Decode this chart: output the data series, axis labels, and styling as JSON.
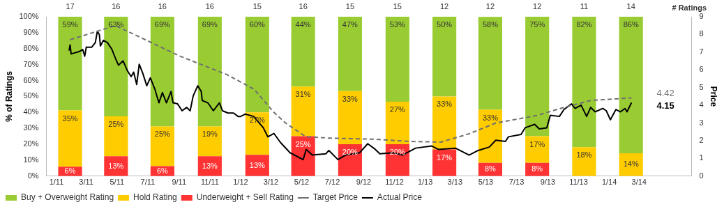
{
  "chart_data": {
    "type": "bar",
    "stacked": true,
    "ylabel": "% of Ratings",
    "y2label": "Price",
    "x": [
      "2011-01-28",
      "2011-04-29",
      "2011-07-30",
      "2011-11-01",
      "2012-02-03",
      "2012-05-04",
      "2012-08-05",
      "2012-11-07",
      "2013-02-08",
      "2013-05-10",
      "2013-08-11",
      "2013-11-12",
      "2014-02-13"
    ],
    "xlim": [
      "2010-12-12",
      "2014-06-13"
    ],
    "xticks": [
      {
        "value": "2011-01",
        "label": "1/11"
      },
      {
        "value": "2011-03",
        "label": "3/11"
      },
      {
        "value": "2011-05",
        "label": "5/11"
      },
      {
        "value": "2011-07",
        "label": "7/11"
      },
      {
        "value": "2011-09",
        "label": "9/11"
      },
      {
        "value": "2011-11",
        "label": "11/11"
      },
      {
        "value": "2012-01",
        "label": "1/12"
      },
      {
        "value": "2012-03",
        "label": "3/12"
      },
      {
        "value": "2012-05",
        "label": "5/12"
      },
      {
        "value": "2012-07",
        "label": "7/12"
      },
      {
        "value": "2012-09",
        "label": "9/12"
      },
      {
        "value": "2012-11",
        "label": "11/12"
      },
      {
        "value": "2013-01",
        "label": "1/13"
      },
      {
        "value": "2013-03",
        "label": "3/13"
      },
      {
        "value": "2013-05",
        "label": "5/13"
      },
      {
        "value": "2013-07",
        "label": "7/13"
      },
      {
        "value": "2013-09",
        "label": "9/13"
      },
      {
        "value": "2013-11",
        "label": "11/13"
      },
      {
        "value": "2014-01",
        "label": "1/14"
      },
      {
        "value": "2014-03",
        "label": "3/14"
      }
    ],
    "ylim": [
      0,
      100
    ],
    "yticks": [
      {
        "value": 0,
        "label": "0%"
      },
      {
        "value": 10,
        "label": "10%"
      },
      {
        "value": 20,
        "label": "20%"
      },
      {
        "value": 30,
        "label": "30%"
      },
      {
        "value": 40,
        "label": "40%"
      },
      {
        "value": 50,
        "label": "50%"
      },
      {
        "value": 60,
        "label": "60%"
      },
      {
        "value": 70,
        "label": "70%"
      },
      {
        "value": 80,
        "label": "80%"
      },
      {
        "value": 90,
        "label": "90%"
      },
      {
        "value": 100,
        "label": "100%"
      }
    ],
    "y2lim": [
      0,
      9
    ],
    "y2ticks": [
      0,
      1,
      2,
      3,
      4,
      5,
      6,
      7,
      8,
      9
    ],
    "grid": false,
    "legend": "bottom",
    "marker": "none",
    "annotations": [
      "# Ratings",
      "4.42",
      "4.15",
      {
        "text": "17",
        "x": "2011-01-28",
        "y": 100
      },
      {
        "text": "16",
        "x": "2011-04-29",
        "y": 100
      },
      {
        "text": "16",
        "x": "2011-07-30",
        "y": 100
      },
      {
        "text": "16",
        "x": "2011-11-01",
        "y": 100
      },
      {
        "text": "15",
        "x": "2012-02-03",
        "y": 100
      },
      {
        "text": "16",
        "x": "2012-05-04",
        "y": 100
      },
      {
        "text": "15",
        "x": "2012-08-05",
        "y": 100
      },
      {
        "text": "15",
        "x": "2012-11-07",
        "y": 100
      },
      {
        "text": "12",
        "x": "2013-02-08",
        "y": 100
      },
      {
        "text": "12",
        "x": "2013-05-10",
        "y": 100
      },
      {
        "text": "12",
        "x": "2013-08-11",
        "y": 100
      },
      {
        "text": "11",
        "x": "2013-11-12",
        "y": 100
      },
      {
        "text": "14",
        "x": "2014-02-13",
        "y": 100
      }
    ],
    "series": [
      {
        "name": "Underweight + Sell Rating",
        "color": "#ff3333",
        "values": [
          5.9,
          12.5,
          6.2,
          12.5,
          13.3,
          25,
          20,
          20,
          16.7,
          8.3,
          8.3,
          0,
          0
        ],
        "value_labels": [
          "6%",
          "13%",
          "6%",
          "13%",
          "13%",
          "25%",
          "20%",
          "20%",
          "17%",
          "8%",
          "8%",
          null,
          null
        ]
      },
      {
        "name": "Hold Rating",
        "color": "#ffcc00",
        "values": [
          35.3,
          25,
          25,
          18.7,
          26.7,
          31.2,
          33.3,
          26.7,
          33.3,
          33.3,
          16.7,
          18.2,
          14.3
        ],
        "value_labels": [
          "35%",
          "25%",
          "25%",
          "19%",
          "27%",
          "31%",
          "33%",
          "27%",
          "33%",
          "33%",
          "17%",
          "18%",
          "14%"
        ]
      },
      {
        "name": "Buy + Overweight Rating",
        "color": "#99cc33",
        "values": [
          58.8,
          62.5,
          68.8,
          68.8,
          60,
          43.8,
          46.7,
          53.3,
          50,
          58.3,
          75,
          81.8,
          85.7
        ],
        "value_labels": [
          "59%",
          "63%",
          "69%",
          "69%",
          "60%",
          "44%",
          "47%",
          "53%",
          "50%",
          "58%",
          "75%",
          "82%",
          "86%"
        ]
      },
      {
        "name": "Target Price",
        "type": "line",
        "axis": "y2",
        "color": "#707070",
        "line_style": "dashed",
        "x": [
          "2011-01-28",
          "2011-04-28",
          "2011-09-03",
          "2011-12-05",
          "2012-01-28",
          "2012-03-07",
          "2012-03-30",
          "2012-05-09",
          "2012-06-22",
          "2012-09-24",
          "2012-12-01",
          "2013-02-01",
          "2013-03-28",
          "2013-05-21",
          "2013-08-10",
          "2013-10-03",
          "2013-11-25",
          "2014-02-14"
        ],
        "values": [
          7.7,
          8.5,
          6.77,
          5.73,
          4.9,
          3.6,
          3.0,
          2.23,
          2.15,
          2.08,
          1.96,
          1.92,
          2.38,
          3.0,
          3.42,
          3.88,
          4.27,
          4.42
        ]
      },
      {
        "name": "Actual Price",
        "type": "line",
        "axis": "y2",
        "color": "#000000",
        "line_style": "solid",
        "x": [
          "2011-01-26",
          "2011-01-28",
          "2011-01-30",
          "2011-02-06",
          "2011-02-15",
          "2011-02-22",
          "2011-02-26",
          "2011-03-01",
          "2011-03-12",
          "2011-03-19",
          "2011-03-23",
          "2011-03-27",
          "2011-03-29",
          "2011-04-04",
          "2011-04-12",
          "2011-04-21",
          "2011-04-28",
          "2011-05-04",
          "2011-05-13",
          "2011-05-22",
          "2011-05-29",
          "2011-06-03",
          "2011-06-09",
          "2011-06-14",
          "2011-06-21",
          "2011-06-29",
          "2011-07-06",
          "2011-07-15",
          "2011-07-23",
          "2011-07-30",
          "2011-08-07",
          "2011-08-16",
          "2011-08-20",
          "2011-08-29",
          "2011-09-07",
          "2011-09-16",
          "2011-09-23",
          "2011-09-29",
          "2011-10-08",
          "2011-10-15",
          "2011-10-17",
          "2011-10-28",
          "2011-11-08",
          "2011-11-20",
          "2011-11-26",
          "2011-12-07",
          "2011-12-18",
          "2011-12-27",
          "2012-01-01",
          "2012-01-10",
          "2012-01-27",
          "2012-02-15",
          "2012-02-24",
          "2012-03-07",
          "2012-03-20",
          "2012-04-08",
          "2012-05-04",
          "2012-05-10",
          "2012-05-22",
          "2012-06-18",
          "2012-06-24",
          "2012-07-12",
          "2012-07-27",
          "2012-08-24",
          "2012-09-09",
          "2012-09-24",
          "2012-10-03",
          "2012-10-29",
          "2012-11-17",
          "2012-12-13",
          "2013-01-14",
          "2013-01-27",
          "2013-03-02",
          "2013-03-29",
          "2013-04-16",
          "2013-05-08",
          "2013-05-21",
          "2013-06-09",
          "2013-06-15",
          "2013-07-10",
          "2013-07-18",
          "2013-08-06",
          "2013-08-15",
          "2013-08-30",
          "2013-09-06",
          "2013-09-24",
          "2013-10-03",
          "2013-10-18",
          "2013-10-25",
          "2013-11-06",
          "2013-11-17",
          "2013-11-25",
          "2013-12-04",
          "2013-12-19",
          "2013-12-26",
          "2014-01-03",
          "2014-01-14",
          "2014-01-23",
          "2014-02-01",
          "2014-02-05",
          "2014-02-14"
        ],
        "values": [
          7.09,
          7.41,
          6.9,
          6.96,
          7.03,
          7.15,
          6.77,
          7.28,
          7.28,
          7.54,
          8.18,
          7.99,
          7.35,
          7.67,
          7.54,
          7.15,
          6.64,
          6.26,
          6.51,
          5.93,
          5.62,
          5.87,
          5.17,
          6.32,
          5.81,
          5.1,
          5.55,
          4.91,
          4.14,
          4.72,
          4.14,
          4.78,
          4.14,
          4.08,
          3.69,
          3.88,
          3.69,
          4.53,
          5.1,
          4.78,
          4.27,
          4.14,
          3.69,
          4.14,
          3.69,
          3.56,
          3.56,
          3.37,
          3.37,
          3.5,
          3.37,
          2.73,
          2.22,
          2.41,
          1.9,
          1.32,
          0.93,
          1.51,
          1.19,
          1.26,
          1.45,
          0.93,
          1.19,
          1.32,
          1.83,
          1.51,
          1.26,
          1.32,
          1.19,
          1.58,
          1.7,
          1.51,
          1.58,
          1.19,
          1.45,
          1.64,
          2.03,
          1.96,
          2.22,
          2.35,
          2.73,
          2.92,
          2.67,
          2.73,
          3.43,
          3.37,
          3.76,
          4.08,
          3.82,
          4.01,
          3.37,
          3.88,
          3.63,
          3.82,
          3.69,
          3.18,
          3.76,
          3.63,
          3.82,
          3.63,
          4.15
        ]
      }
    ]
  }
}
